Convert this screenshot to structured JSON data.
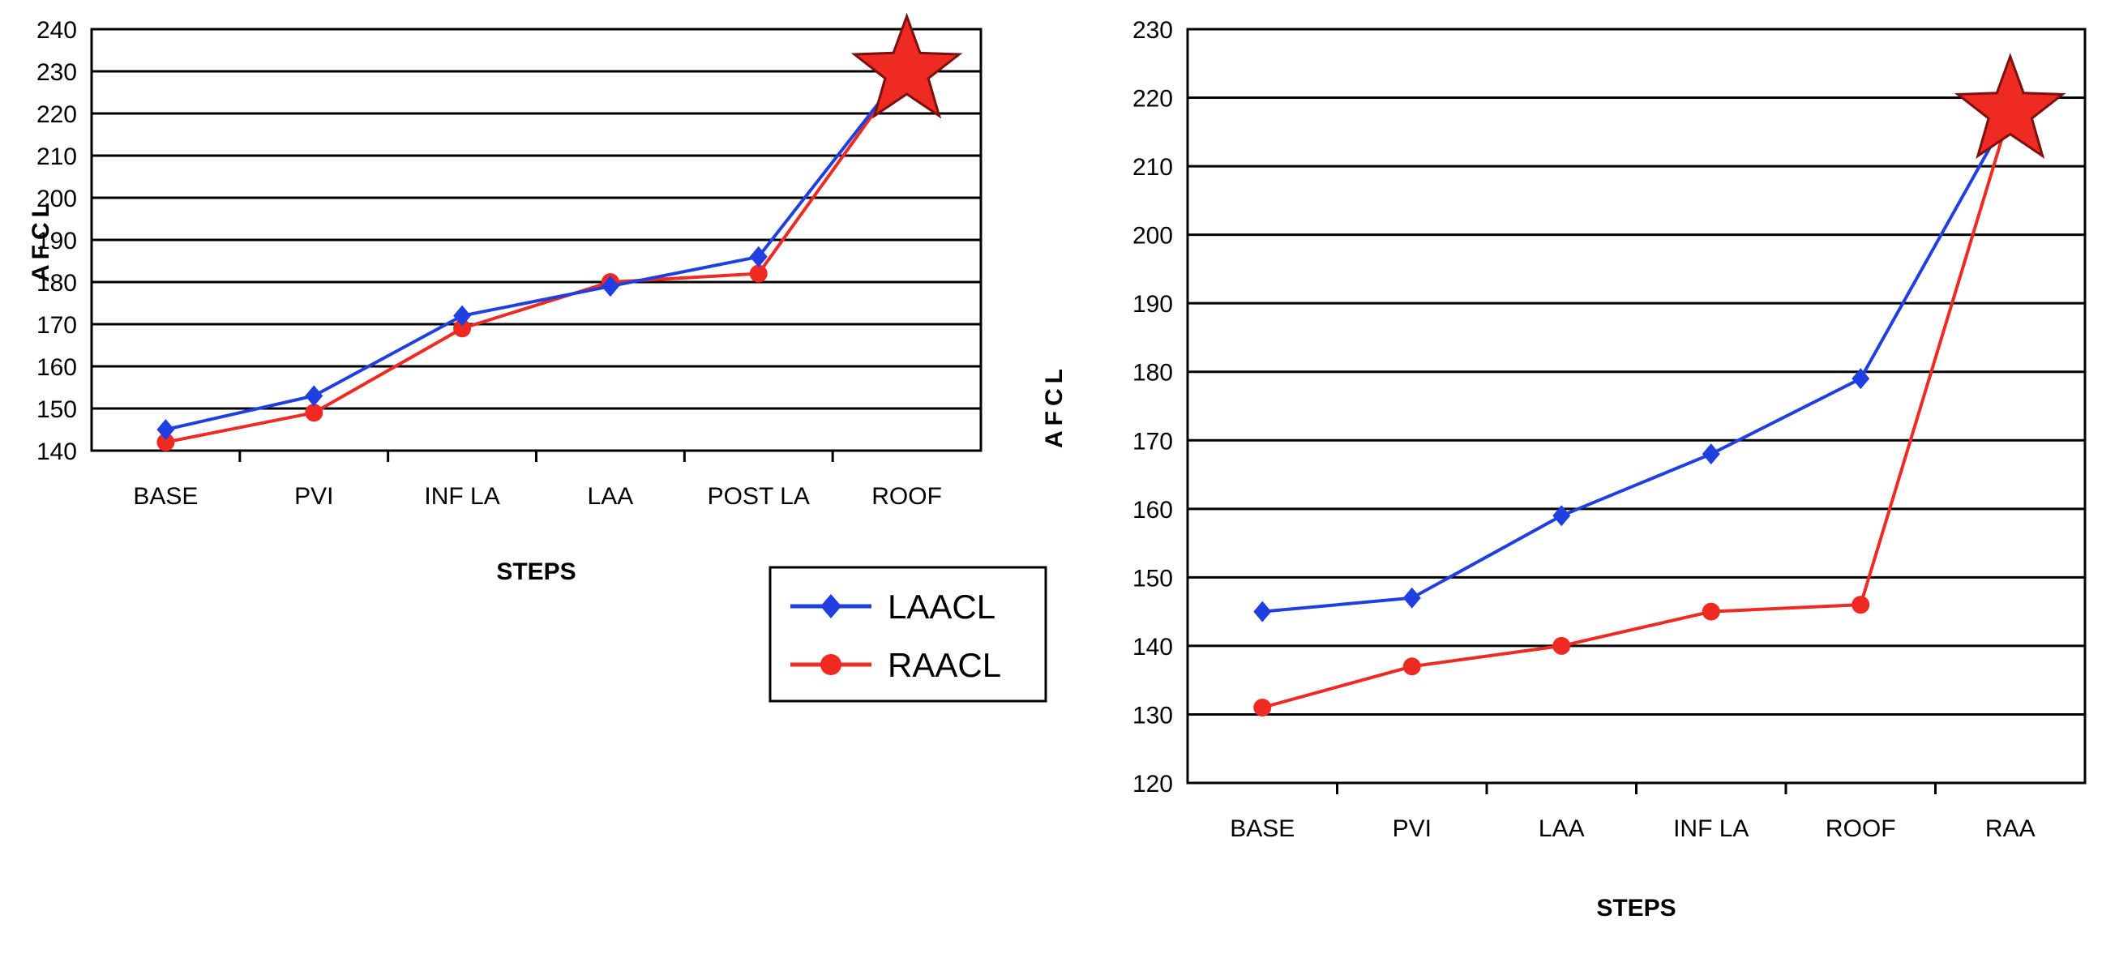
{
  "chart_data": [
    {
      "type": "line",
      "categories": [
        "BASE",
        "PVI",
        "INF LA",
        "LAA",
        "POST LA",
        "ROOF"
      ],
      "series": [
        {
          "name": "LAACL",
          "color": "#1f3fe0",
          "marker": "diamond",
          "values": [
            145,
            153,
            172,
            179,
            186,
            231
          ]
        },
        {
          "name": "RAACL",
          "color": "#ee2a22",
          "marker": "circle",
          "values": [
            142,
            149,
            169,
            180,
            182,
            231
          ]
        }
      ],
      "yticks": [
        140,
        150,
        160,
        170,
        180,
        190,
        200,
        210,
        220,
        230,
        240
      ],
      "ylim": [
        140,
        240
      ],
      "xlabel": "STEPS",
      "ylabel": "AFCL",
      "grid": true,
      "legend": "bottom-right",
      "star": {
        "category": "ROOF",
        "value": 230,
        "color": "#ee2a22"
      }
    },
    {
      "type": "line",
      "categories": [
        "BASE",
        "PVI",
        "LAA",
        "INF LA",
        "ROOF",
        "RAA"
      ],
      "series": [
        {
          "name": "LAACL",
          "color": "#1f3fe0",
          "marker": "diamond",
          "values": [
            145,
            147,
            159,
            168,
            179,
            218
          ]
        },
        {
          "name": "RAACL",
          "color": "#ee2a22",
          "marker": "circle",
          "values": [
            131,
            137,
            140,
            145,
            146,
            218
          ]
        }
      ],
      "yticks": [
        120,
        130,
        140,
        150,
        160,
        170,
        180,
        190,
        200,
        210,
        220,
        230
      ],
      "ylim": [
        120,
        230
      ],
      "xlabel": "STEPS",
      "ylabel": "AFCL",
      "grid": true,
      "legend": "none",
      "star": {
        "category": "RAA",
        "value": 218,
        "color": "#ee2a22"
      }
    }
  ]
}
